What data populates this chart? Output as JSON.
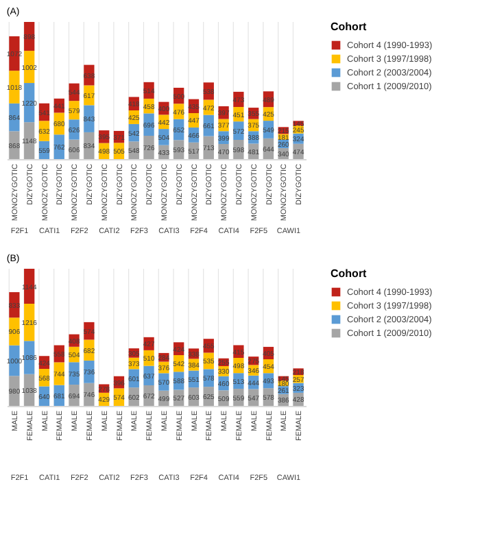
{
  "chart_data": [
    {
      "type": "bar",
      "title": "(A)",
      "stacked": true,
      "data_labels": true,
      "grid": "x",
      "legend": "right",
      "legend_title": "Cohort",
      "categories": [
        "MONOZYGOTIC",
        "DIZYGOTIC",
        "MONOZYGOTIC",
        "DIZYGOTIC",
        "MONOZYGOTIC",
        "DIZYGOTIC",
        "MONOZYGOTIC",
        "DIZYGOTIC",
        "MONOZYGOTIC",
        "DIZYGOTIC",
        "MONOZYGOTIC",
        "DIZYGOTIC",
        "MONOZYGOTIC",
        "DIZYGOTIC",
        "MONOZYGOTIC",
        "DIZYGOTIC",
        "MONOZYGOTIC",
        "DIZYGOTIC",
        "MONOZYGOTIC",
        "DIZYGOTIC"
      ],
      "annotations": [
        "F2F1",
        "CATI1",
        "F2F2",
        "CATI2",
        "F2F3",
        "CATI3",
        "F2F4",
        "CATI4",
        "F2F5",
        "CAWI1"
      ],
      "series": [
        {
          "name": "Cohort 1 (2009/2010)",
          "color": "#a5a5a5",
          "values": [
            868,
            1148,
            null,
            null,
            606,
            834,
            null,
            null,
            548,
            726,
            433,
            593,
            517,
            713,
            470,
            598,
            481,
            644,
            340,
            474
          ]
        },
        {
          "name": "Cohort 2 (2003/2004)",
          "color": "#5b9bd5",
          "values": [
            864,
            1220,
            559,
            762,
            626,
            843,
            null,
            null,
            542,
            696,
            504,
            652,
            466,
            661,
            399,
            572,
            388,
            549,
            260,
            324
          ]
        },
        {
          "name": "Cohort 3 (1997/1998)",
          "color": "#ffc000",
          "values": [
            1018,
            1002,
            632,
            680,
            579,
            617,
            498,
            505,
            425,
            458,
            442,
            476,
            447,
            472,
            377,
            451,
            375,
            425,
            181,
            245
          ]
        },
        {
          "name": "Cohort 4 (1990-1993)",
          "color": "#c0221a",
          "values": [
            1072,
            898,
            541,
            441,
            544,
            638,
            395,
            371,
            418,
            514,
            400,
            500,
            435,
            538,
            397,
            473,
            355,
            489,
            215,
            145
          ]
        }
      ]
    },
    {
      "type": "bar",
      "title": "(B)",
      "stacked": true,
      "data_labels": true,
      "grid": "x",
      "legend": "right",
      "legend_title": "Cohort",
      "categories": [
        "MALE",
        "FEMALE",
        "MALE",
        "FEMALE",
        "MALE",
        "FEMALE",
        "MALE",
        "FEMALE",
        "MALE",
        "FEMALE",
        "MALE",
        "FEMALE",
        "MALE",
        "FEMALE",
        "MALE",
        "FEMALE",
        "MALE",
        "FEMALE",
        "MALE",
        "FEMALE"
      ],
      "annotations": [
        "F2F1",
        "CATI1",
        "F2F2",
        "CATI2",
        "F2F3",
        "CATI3",
        "F2F4",
        "CATI4",
        "F2F5",
        "CAWI1"
      ],
      "series": [
        {
          "name": "Cohort 1 (2009/2010)",
          "color": "#a5a5a5",
          "values": [
            980,
            1038,
            null,
            null,
            694,
            746,
            null,
            null,
            602,
            672,
            499,
            527,
            603,
            625,
            509,
            559,
            547,
            578,
            386,
            428
          ]
        },
        {
          "name": "Cohort 2 (2003/2004)",
          "color": "#5b9bd5",
          "values": [
            1000,
            1086,
            640,
            681,
            735,
            736,
            null,
            null,
            601,
            637,
            570,
            588,
            551,
            578,
            460,
            513,
            444,
            493,
            261,
            323
          ]
        },
        {
          "name": "Cohort 3 (1997/1998)",
          "color": "#ffc000",
          "values": [
            906,
            1216,
            568,
            744,
            504,
            682,
            429,
            574,
            373,
            510,
            376,
            542,
            384,
            535,
            330,
            498,
            346,
            454,
            180,
            257
          ]
        },
        {
          "name": "Cohort 4 (1990-1993)",
          "color": "#c0221a",
          "values": [
            833,
            1144,
            424,
            558,
            408,
            574,
            278,
            396,
            305,
            427,
            284,
            424,
            338,
            455,
            255,
            415,
            275,
            405,
            145,
            218
          ]
        }
      ]
    }
  ]
}
